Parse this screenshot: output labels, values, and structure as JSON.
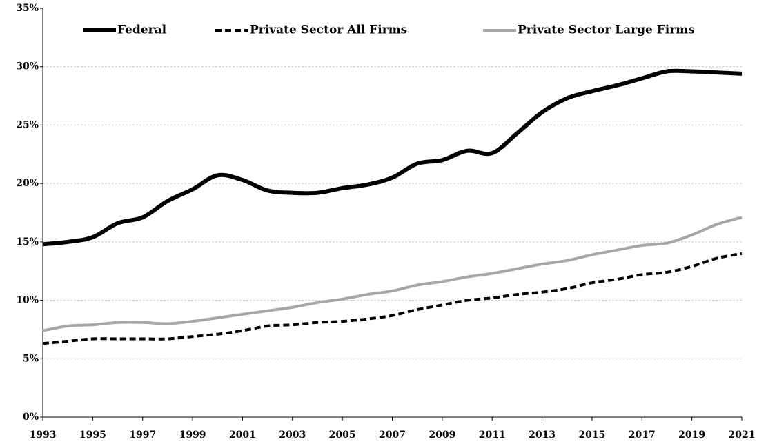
{
  "chart_data": {
    "type": "line",
    "x": [
      1993,
      1994,
      1995,
      1996,
      1997,
      1998,
      1999,
      2000,
      2001,
      2002,
      2003,
      2004,
      2005,
      2006,
      2007,
      2008,
      2009,
      2010,
      2011,
      2012,
      2013,
      2014,
      2015,
      2016,
      2017,
      2018,
      2019,
      2020,
      2021
    ],
    "series": [
      {
        "name": "Federal",
        "color": "#000000",
        "style": "solid",
        "values": [
          14.8,
          15.0,
          15.4,
          16.6,
          17.1,
          18.5,
          19.5,
          20.7,
          20.3,
          19.4,
          19.2,
          19.2,
          19.6,
          19.9,
          20.5,
          21.7,
          22.0,
          22.8,
          22.6,
          24.3,
          26.1,
          27.3,
          27.9,
          28.4,
          29.0,
          29.6,
          29.6,
          29.5,
          29.4
        ]
      },
      {
        "name": "Private Sector All Firms",
        "color": "#000000",
        "style": "dashed",
        "values": [
          6.3,
          6.5,
          6.7,
          6.7,
          6.7,
          6.7,
          6.9,
          7.1,
          7.4,
          7.8,
          7.9,
          8.1,
          8.2,
          8.4,
          8.7,
          9.2,
          9.6,
          10.0,
          10.2,
          10.5,
          10.7,
          11.0,
          11.5,
          11.8,
          12.2,
          12.4,
          12.9,
          13.6,
          14.0
        ]
      },
      {
        "name": "Private Sector Large Firms",
        "color": "#a6a6a6",
        "style": "solid",
        "values": [
          7.4,
          7.8,
          7.9,
          8.1,
          8.1,
          8.0,
          8.2,
          8.5,
          8.8,
          9.1,
          9.4,
          9.8,
          10.1,
          10.5,
          10.8,
          11.3,
          11.6,
          12.0,
          12.3,
          12.7,
          13.1,
          13.4,
          13.9,
          14.3,
          14.7,
          14.9,
          15.6,
          16.5,
          17.1
        ]
      }
    ],
    "xlim": [
      1993,
      2021
    ],
    "xticks": [
      1993,
      1995,
      1997,
      1999,
      2001,
      2003,
      2005,
      2007,
      2009,
      2011,
      2013,
      2015,
      2017,
      2019,
      2021
    ],
    "ylim": [
      0,
      35
    ],
    "yticks": [
      {
        "value": 0,
        "label": "0%"
      },
      {
        "value": 5,
        "label": "5%"
      },
      {
        "value": 10,
        "label": "10%"
      },
      {
        "value": 15,
        "label": "15%"
      },
      {
        "value": 20,
        "label": "20%"
      },
      {
        "value": 25,
        "label": "25%"
      },
      {
        "value": 30,
        "label": "30%"
      },
      {
        "value": 35,
        "label": "35%"
      }
    ],
    "grid": true,
    "legend": "top"
  }
}
